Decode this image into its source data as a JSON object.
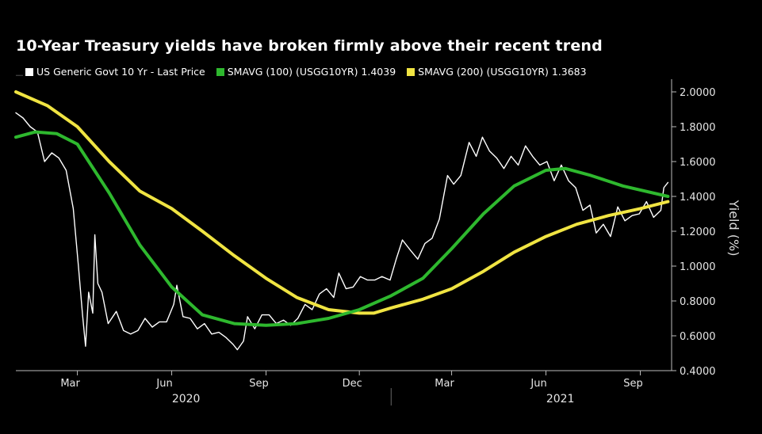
{
  "chart_data": {
    "type": "line",
    "title": "10-Year Treasury yields have broken firmly above their recent trend",
    "ylabel": "Yield (%)",
    "ylim": [
      0.4,
      2.05
    ],
    "yticks": [
      "2.0000",
      "1.8000",
      "1.6000",
      "1.4000",
      "1.2000",
      "1.0000",
      "0.8000",
      "0.6000",
      "0.4000"
    ],
    "ytick_values": [
      2.0,
      1.8,
      1.6,
      1.4,
      1.2,
      1.0,
      0.8,
      0.6,
      0.4
    ],
    "xlim": [
      "2020-01-01",
      "2021-09-30"
    ],
    "month_ticks": [
      {
        "label": "Mar",
        "date": "2020-03-01"
      },
      {
        "label": "Jun",
        "date": "2020-06-01"
      },
      {
        "label": "Sep",
        "date": "2020-09-01"
      },
      {
        "label": "Dec",
        "date": "2020-12-01"
      },
      {
        "label": "Mar",
        "date": "2021-03-01"
      },
      {
        "label": "Jun",
        "date": "2021-06-01"
      },
      {
        "label": "Sep",
        "date": "2021-09-01"
      }
    ],
    "year_labels": [
      {
        "label": "2020",
        "date": "2020-06-15"
      },
      {
        "label": "2021",
        "date": "2021-06-15"
      }
    ],
    "legend_position": "top-left",
    "series": [
      {
        "name": "US Generic Govt 10 Yr - Last Price",
        "color": "#ffffff",
        "points": [
          [
            "2020-01-01",
            1.88
          ],
          [
            "2020-01-08",
            1.85
          ],
          [
            "2020-01-15",
            1.8
          ],
          [
            "2020-01-22",
            1.77
          ],
          [
            "2020-01-29",
            1.6
          ],
          [
            "2020-02-05",
            1.65
          ],
          [
            "2020-02-12",
            1.62
          ],
          [
            "2020-02-19",
            1.55
          ],
          [
            "2020-02-26",
            1.33
          ],
          [
            "2020-03-02",
            1.0
          ],
          [
            "2020-03-06",
            0.72
          ],
          [
            "2020-03-09",
            0.54
          ],
          [
            "2020-03-12",
            0.85
          ],
          [
            "2020-03-16",
            0.73
          ],
          [
            "2020-03-18",
            1.18
          ],
          [
            "2020-03-21",
            0.9
          ],
          [
            "2020-03-25",
            0.85
          ],
          [
            "2020-03-31",
            0.67
          ],
          [
            "2020-04-08",
            0.74
          ],
          [
            "2020-04-15",
            0.63
          ],
          [
            "2020-04-22",
            0.61
          ],
          [
            "2020-04-29",
            0.63
          ],
          [
            "2020-05-06",
            0.7
          ],
          [
            "2020-05-13",
            0.65
          ],
          [
            "2020-05-20",
            0.68
          ],
          [
            "2020-05-27",
            0.68
          ],
          [
            "2020-06-03",
            0.78
          ],
          [
            "2020-06-06",
            0.89
          ],
          [
            "2020-06-12",
            0.71
          ],
          [
            "2020-06-19",
            0.7
          ],
          [
            "2020-06-26",
            0.64
          ],
          [
            "2020-07-03",
            0.67
          ],
          [
            "2020-07-10",
            0.61
          ],
          [
            "2020-07-17",
            0.62
          ],
          [
            "2020-07-24",
            0.59
          ],
          [
            "2020-07-31",
            0.55
          ],
          [
            "2020-08-04",
            0.52
          ],
          [
            "2020-08-10",
            0.57
          ],
          [
            "2020-08-14",
            0.71
          ],
          [
            "2020-08-21",
            0.64
          ],
          [
            "2020-08-28",
            0.72
          ],
          [
            "2020-09-04",
            0.72
          ],
          [
            "2020-09-11",
            0.67
          ],
          [
            "2020-09-18",
            0.69
          ],
          [
            "2020-09-25",
            0.66
          ],
          [
            "2020-10-02",
            0.7
          ],
          [
            "2020-10-09",
            0.78
          ],
          [
            "2020-10-16",
            0.75
          ],
          [
            "2020-10-23",
            0.84
          ],
          [
            "2020-10-30",
            0.87
          ],
          [
            "2020-11-06",
            0.82
          ],
          [
            "2020-11-11",
            0.96
          ],
          [
            "2020-11-18",
            0.87
          ],
          [
            "2020-11-25",
            0.88
          ],
          [
            "2020-12-02",
            0.94
          ],
          [
            "2020-12-09",
            0.92
          ],
          [
            "2020-12-16",
            0.92
          ],
          [
            "2020-12-23",
            0.94
          ],
          [
            "2020-12-31",
            0.92
          ],
          [
            "2021-01-06",
            1.04
          ],
          [
            "2021-01-12",
            1.15
          ],
          [
            "2021-01-20",
            1.09
          ],
          [
            "2021-01-27",
            1.04
          ],
          [
            "2021-02-03",
            1.13
          ],
          [
            "2021-02-10",
            1.16
          ],
          [
            "2021-02-17",
            1.27
          ],
          [
            "2021-02-25",
            1.52
          ],
          [
            "2021-03-03",
            1.47
          ],
          [
            "2021-03-10",
            1.52
          ],
          [
            "2021-03-18",
            1.71
          ],
          [
            "2021-03-25",
            1.63
          ],
          [
            "2021-03-31",
            1.74
          ],
          [
            "2021-04-07",
            1.66
          ],
          [
            "2021-04-14",
            1.62
          ],
          [
            "2021-04-21",
            1.56
          ],
          [
            "2021-04-28",
            1.63
          ],
          [
            "2021-05-05",
            1.58
          ],
          [
            "2021-05-12",
            1.69
          ],
          [
            "2021-05-19",
            1.63
          ],
          [
            "2021-05-26",
            1.58
          ],
          [
            "2021-06-02",
            1.6
          ],
          [
            "2021-06-09",
            1.49
          ],
          [
            "2021-06-16",
            1.58
          ],
          [
            "2021-06-23",
            1.49
          ],
          [
            "2021-06-30",
            1.45
          ],
          [
            "2021-07-07",
            1.32
          ],
          [
            "2021-07-14",
            1.35
          ],
          [
            "2021-07-20",
            1.19
          ],
          [
            "2021-07-27",
            1.24
          ],
          [
            "2021-08-03",
            1.17
          ],
          [
            "2021-08-10",
            1.34
          ],
          [
            "2021-08-17",
            1.26
          ],
          [
            "2021-08-24",
            1.29
          ],
          [
            "2021-08-31",
            1.3
          ],
          [
            "2021-09-07",
            1.37
          ],
          [
            "2021-09-14",
            1.28
          ],
          [
            "2021-09-21",
            1.32
          ],
          [
            "2021-09-24",
            1.45
          ],
          [
            "2021-09-28",
            1.48
          ]
        ]
      },
      {
        "name": "SMAVG (100) (USGG10YR) 1.4039",
        "color": "#2eb82e",
        "points": [
          [
            "2020-01-01",
            1.74
          ],
          [
            "2020-01-20",
            1.77
          ],
          [
            "2020-02-10",
            1.76
          ],
          [
            "2020-03-01",
            1.7
          ],
          [
            "2020-04-01",
            1.42
          ],
          [
            "2020-05-01",
            1.12
          ],
          [
            "2020-06-01",
            0.88
          ],
          [
            "2020-07-01",
            0.72
          ],
          [
            "2020-08-01",
            0.67
          ],
          [
            "2020-09-01",
            0.66
          ],
          [
            "2020-10-01",
            0.67
          ],
          [
            "2020-11-01",
            0.7
          ],
          [
            "2020-12-01",
            0.75
          ],
          [
            "2021-01-01",
            0.83
          ],
          [
            "2021-02-01",
            0.93
          ],
          [
            "2021-03-01",
            1.1
          ],
          [
            "2021-04-01",
            1.3
          ],
          [
            "2021-05-01",
            1.46
          ],
          [
            "2021-06-01",
            1.55
          ],
          [
            "2021-06-20",
            1.56
          ],
          [
            "2021-07-15",
            1.52
          ],
          [
            "2021-08-15",
            1.46
          ],
          [
            "2021-09-28",
            1.4
          ]
        ]
      },
      {
        "name": "SMAVG (200) (USGG10YR) 1.3683",
        "color": "#f0e442",
        "points": [
          [
            "2020-01-01",
            2.0
          ],
          [
            "2020-02-01",
            1.92
          ],
          [
            "2020-03-01",
            1.8
          ],
          [
            "2020-04-01",
            1.6
          ],
          [
            "2020-05-01",
            1.43
          ],
          [
            "2020-06-01",
            1.33
          ],
          [
            "2020-07-01",
            1.2
          ],
          [
            "2020-08-01",
            1.06
          ],
          [
            "2020-09-01",
            0.93
          ],
          [
            "2020-10-01",
            0.82
          ],
          [
            "2020-11-01",
            0.75
          ],
          [
            "2020-12-01",
            0.73
          ],
          [
            "2020-12-15",
            0.73
          ],
          [
            "2021-01-01",
            0.76
          ],
          [
            "2021-02-01",
            0.81
          ],
          [
            "2021-03-01",
            0.87
          ],
          [
            "2021-04-01",
            0.97
          ],
          [
            "2021-05-01",
            1.08
          ],
          [
            "2021-06-01",
            1.17
          ],
          [
            "2021-07-01",
            1.24
          ],
          [
            "2021-08-01",
            1.29
          ],
          [
            "2021-09-01",
            1.33
          ],
          [
            "2021-09-28",
            1.37
          ]
        ]
      }
    ]
  }
}
